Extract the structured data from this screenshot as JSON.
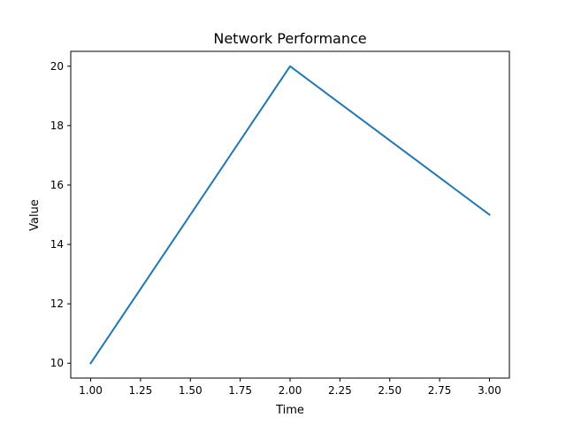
{
  "chart_data": {
    "type": "line",
    "title": "Network Performance",
    "xlabel": "Time",
    "ylabel": "Value",
    "x": [
      1.0,
      2.0,
      3.0
    ],
    "series": [
      {
        "values": [
          10,
          20,
          15
        ],
        "color": "#1f77b4"
      }
    ],
    "xlim": [
      0.9,
      3.1
    ],
    "ylim": [
      9.5,
      20.5
    ],
    "xticks": [
      1.0,
      1.25,
      1.5,
      1.75,
      2.0,
      2.25,
      2.5,
      2.75,
      3.0
    ],
    "xtick_labels": [
      "1.00",
      "1.25",
      "1.50",
      "1.75",
      "2.00",
      "2.25",
      "2.50",
      "2.75",
      "3.00"
    ],
    "yticks": [
      10,
      12,
      14,
      16,
      18,
      20
    ],
    "ytick_labels": [
      "10",
      "12",
      "14",
      "16",
      "18",
      "20"
    ],
    "grid": false,
    "legend": false
  }
}
